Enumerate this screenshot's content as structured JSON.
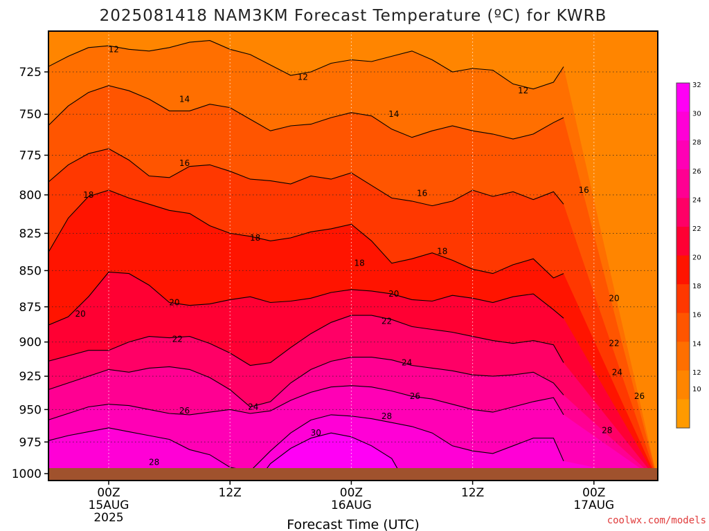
{
  "chart_data": {
    "type": "heatmap",
    "title": "2025081418 NAM3KM Forecast Temperature (ºC) for KWRB",
    "xlabel": "Forecast Time (UTC)",
    "ylabel": "",
    "y_scale": "log-pressure",
    "ylim": [
      1005,
      700
    ],
    "xlim": [
      -6,
      45
    ],
    "y_ticks": [
      725,
      750,
      775,
      800,
      825,
      850,
      875,
      900,
      925,
      950,
      975,
      1000
    ],
    "x_ticks": [
      {
        "hour": 0,
        "lines": [
          "00Z",
          "15AUG",
          "2025"
        ]
      },
      {
        "hour": 12,
        "lines": [
          "12Z"
        ]
      },
      {
        "hour": 24,
        "lines": [
          "00Z",
          "16AUG"
        ]
      },
      {
        "hour": 36,
        "lines": [
          "12Z"
        ]
      },
      {
        "hour": 48,
        "lines": [
          "00Z",
          "17AUG"
        ]
      }
    ],
    "grid": true,
    "contour_interval": 2,
    "colorbar": {
      "position": "right",
      "ticks": [
        10,
        12,
        14,
        16,
        18,
        20,
        22,
        24,
        26,
        28,
        30,
        32
      ],
      "colors": [
        "#ff9a00",
        "#ff8500",
        "#ff6f00",
        "#ff5500",
        "#ff3800",
        "#ff1400",
        "#ff0033",
        "#ff0066",
        "#ff0092",
        "#ff00b5",
        "#ff00d6",
        "#ff00f5"
      ]
    },
    "surface_color": "#a0522d",
    "series": [
      {
        "name": "12",
        "label_pos": [
          [
            0.5,
            712
          ],
          [
            19.2,
            728
          ],
          [
            41,
            736
          ]
        ],
        "x": [
          -6,
          -4,
          -2,
          0,
          2,
          4,
          6,
          8,
          10,
          12,
          14,
          16,
          18,
          20,
          22,
          24,
          26,
          28,
          30,
          32,
          34,
          36,
          38,
          40,
          42,
          44,
          45
        ],
        "p": [
          722,
          716,
          711,
          710,
          712,
          713,
          711,
          708,
          707,
          712,
          715,
          721,
          727,
          725,
          720,
          718,
          719,
          716,
          713,
          718,
          725,
          723,
          724,
          732,
          735,
          731,
          722
        ]
      },
      {
        "name": "14",
        "label_pos": [
          [
            7.5,
            741
          ],
          [
            28.2,
            750
          ]
        ],
        "x": [
          -6,
          -4,
          -2,
          0,
          2,
          4,
          6,
          8,
          10,
          12,
          14,
          16,
          18,
          20,
          22,
          24,
          26,
          28,
          30,
          32,
          34,
          36,
          38,
          40,
          42,
          44,
          45
        ],
        "p": [
          757,
          745,
          737,
          733,
          736,
          741,
          748,
          748,
          744,
          746,
          753,
          760,
          757,
          756,
          752,
          749,
          751,
          759,
          764,
          760,
          757,
          760,
          762,
          765,
          762,
          755,
          752
        ]
      },
      {
        "name": "16",
        "label_pos": [
          [
            7.5,
            780
          ],
          [
            31,
            799
          ],
          [
            47,
            797
          ]
        ],
        "x": [
          -6,
          -4,
          -2,
          0,
          2,
          4,
          6,
          8,
          10,
          12,
          14,
          16,
          18,
          20,
          22,
          24,
          26,
          28,
          30,
          32,
          34,
          36,
          38,
          40,
          42,
          44,
          45
        ],
        "p": [
          792,
          781,
          774,
          771,
          778,
          788,
          789,
          782,
          781,
          785,
          790,
          791,
          793,
          788,
          790,
          786,
          794,
          802,
          804,
          807,
          804,
          797,
          801,
          798,
          803,
          798,
          806
        ]
      },
      {
        "name": "18",
        "label_pos": [
          [
            -2,
            800
          ],
          [
            14.5,
            828
          ],
          [
            24.8,
            845
          ],
          [
            33,
            837
          ],
          [
            56,
            825
          ]
        ],
        "x": [
          -6,
          -4,
          -2,
          0,
          2,
          4,
          6,
          8,
          10,
          12,
          14,
          16,
          18,
          20,
          22,
          24,
          26,
          28,
          30,
          32,
          34,
          36,
          38,
          40,
          42,
          44,
          45
        ],
        "p": [
          838,
          815,
          801,
          797,
          802,
          806,
          810,
          812,
          820,
          825,
          827,
          830,
          828,
          824,
          822,
          819,
          830,
          845,
          842,
          838,
          843,
          849,
          852,
          846,
          842,
          855,
          852
        ]
      },
      {
        "name": "20",
        "label_pos": [
          [
            -2.8,
            880
          ],
          [
            6.5,
            872
          ],
          [
            28.2,
            866
          ],
          [
            50,
            869
          ]
        ],
        "x": [
          -6,
          -4,
          -2,
          0,
          2,
          4,
          6,
          8,
          10,
          12,
          14,
          16,
          18,
          20,
          22,
          24,
          26,
          28,
          30,
          32,
          34,
          36,
          38,
          40,
          42,
          44,
          45
        ],
        "p": [
          888,
          882,
          868,
          851,
          852,
          860,
          872,
          874,
          873,
          870,
          868,
          872,
          871,
          869,
          865,
          863,
          864,
          866,
          870,
          871,
          867,
          869,
          872,
          868,
          866,
          877,
          883
        ]
      },
      {
        "name": "22",
        "label_pos": [
          [
            6.8,
            898
          ],
          [
            27.5,
            885
          ],
          [
            50,
            901
          ]
        ],
        "x": [
          -6,
          -4,
          -2,
          0,
          2,
          4,
          6,
          8,
          10,
          12,
          14,
          16,
          18,
          20,
          22,
          24,
          26,
          28,
          30,
          32,
          34,
          36,
          38,
          40,
          42,
          44,
          45
        ],
        "p": [
          914,
          910,
          906,
          906,
          900,
          896,
          897,
          896,
          901,
          908,
          917,
          915,
          904,
          894,
          886,
          881,
          881,
          884,
          889,
          891,
          893,
          896,
          899,
          901,
          899,
          902,
          915
        ]
      },
      {
        "name": "24",
        "label_pos": [
          [
            14.3,
            948
          ],
          [
            29.5,
            915
          ],
          [
            50.3,
            922
          ]
        ],
        "x": [
          -6,
          -4,
          -2,
          0,
          2,
          4,
          6,
          8,
          10,
          12,
          14,
          16,
          18,
          20,
          22,
          24,
          26,
          28,
          30,
          32,
          34,
          36,
          38,
          40,
          42,
          44,
          45
        ],
        "p": [
          935,
          930,
          925,
          920,
          922,
          919,
          918,
          920,
          926,
          935,
          948,
          944,
          930,
          920,
          914,
          911,
          911,
          913,
          917,
          919,
          921,
          924,
          925,
          924,
          922,
          930,
          939
        ]
      },
      {
        "name": "26",
        "label_pos": [
          [
            7.5,
            951
          ],
          [
            30.3,
            940
          ],
          [
            52.5,
            940
          ]
        ],
        "x": [
          -6,
          -4,
          -2,
          0,
          2,
          4,
          6,
          8,
          10,
          12,
          14,
          16,
          18,
          20,
          22,
          24,
          26,
          28,
          30,
          32,
          34,
          36,
          38,
          40,
          42,
          44,
          45
        ],
        "p": [
          958,
          953,
          948,
          946,
          947,
          950,
          953,
          954,
          952,
          950,
          953,
          951,
          943,
          937,
          933,
          932,
          933,
          936,
          940,
          942,
          946,
          950,
          952,
          948,
          944,
          941,
          954
        ]
      },
      {
        "name": "28",
        "label_pos": [
          [
            4.5,
            991
          ],
          [
            27.5,
            955
          ],
          [
            49.3,
            966
          ]
        ],
        "x": [
          -6,
          -4,
          -2,
          0,
          2,
          4,
          6,
          8,
          10,
          12,
          14,
          16,
          18,
          20,
          22,
          24,
          26,
          28,
          30,
          32,
          34,
          36,
          38,
          40,
          42,
          44,
          45
        ],
        "p": [
          974,
          970,
          967,
          964,
          967,
          970,
          973,
          981,
          985,
          995,
          998,
          982,
          968,
          958,
          954,
          955,
          957,
          960,
          963,
          968,
          978,
          982,
          984,
          978,
          972,
          972,
          990
        ]
      },
      {
        "name": "30",
        "label_pos": [
          [
            20.5,
            968
          ]
        ],
        "x": [
          14.8,
          16,
          18,
          20,
          22,
          24,
          26,
          28,
          29.2
        ],
        "p": [
          1005,
          992,
          980,
          972,
          968,
          971,
          978,
          988,
          1005
        ]
      }
    ],
    "annotations": [
      "coolwx.com/models"
    ]
  }
}
